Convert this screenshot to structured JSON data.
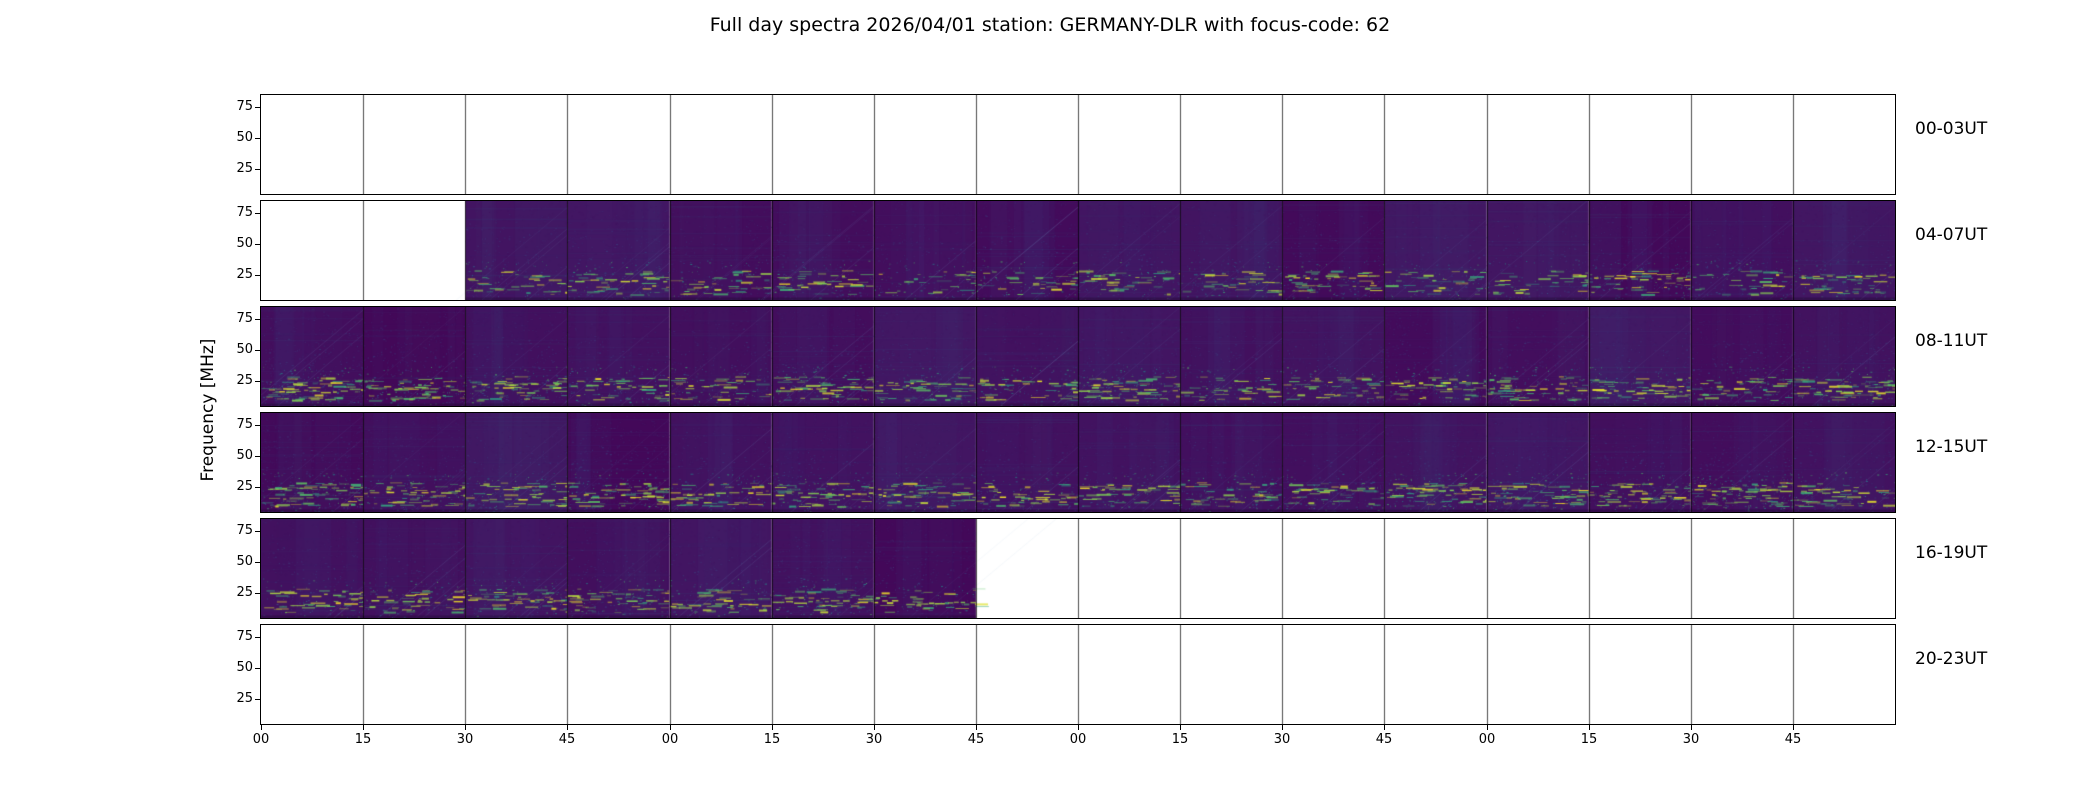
{
  "title": "Full day spectra 2026/04/01 station: GERMANY-DLR with focus-code: 62",
  "ylabel": "Frequency [MHz]",
  "chart_data": {
    "type": "heatmap",
    "subtype": "solar_radio_spectrogram_grid",
    "station": "GERMANY-DLR",
    "date": "2026/04/01",
    "focus_code": "62",
    "colormap": "viridis",
    "hours_per_row": 4,
    "segments_per_row": 16,
    "minutes_per_segment": 15,
    "x_tick_labels": [
      "00",
      "15",
      "30",
      "45",
      "00",
      "15",
      "30",
      "45",
      "00",
      "15",
      "30",
      "45",
      "00",
      "15",
      "30",
      "45"
    ],
    "y_tick_labels": [
      "75",
      "50",
      "25"
    ],
    "y_tick_values": [
      75,
      50,
      25
    ],
    "freq_range_mhz": [
      5,
      85
    ],
    "emission_band_freq_mhz": [
      18,
      30
    ],
    "rows": [
      {
        "label": "00-03UT",
        "has_data": false,
        "data_start_segment": 0,
        "data_end_segment": 0,
        "activity": 0
      },
      {
        "label": "04-07UT",
        "has_data": true,
        "data_start_segment": 2,
        "data_end_segment": 16,
        "activity": 0.55
      },
      {
        "label": "08-11UT",
        "has_data": true,
        "data_start_segment": 0,
        "data_end_segment": 16,
        "activity": 0.85
      },
      {
        "label": "12-15UT",
        "has_data": true,
        "data_start_segment": 0,
        "data_end_segment": 16,
        "activity": 0.95
      },
      {
        "label": "16-19UT",
        "has_data": true,
        "data_start_segment": 0,
        "data_end_segment": 7,
        "activity": 0.7
      },
      {
        "label": "20-23UT",
        "has_data": false,
        "data_start_segment": 0,
        "data_end_segment": 0,
        "activity": 0
      }
    ],
    "colormap_stops": [
      [
        0.0,
        68,
        1,
        84
      ],
      [
        0.25,
        59,
        82,
        139
      ],
      [
        0.5,
        33,
        145,
        140
      ],
      [
        0.75,
        94,
        201,
        98
      ],
      [
        1.0,
        253,
        231,
        37
      ]
    ],
    "grid_color": "#000000",
    "empty_color": "#ffffff"
  }
}
